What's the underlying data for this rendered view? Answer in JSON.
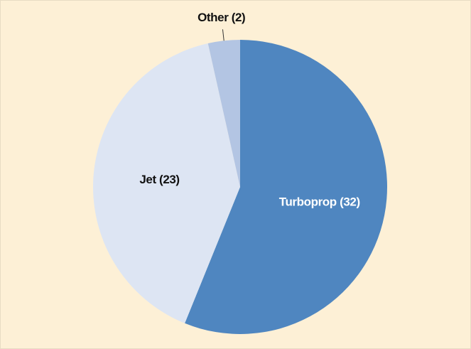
{
  "chart_data": {
    "type": "pie",
    "values": [
      32,
      23,
      2
    ],
    "value_labels": [
      "Turboprop (32)",
      "Jet (23)",
      "Other (2)"
    ],
    "colors": [
      "#4f86c0",
      "#dde5f3",
      "#b3c5e3"
    ],
    "label_colors": [
      "#ffffff",
      "#111111",
      "#111111"
    ],
    "start_angle": 0,
    "direction": "clockwise"
  }
}
